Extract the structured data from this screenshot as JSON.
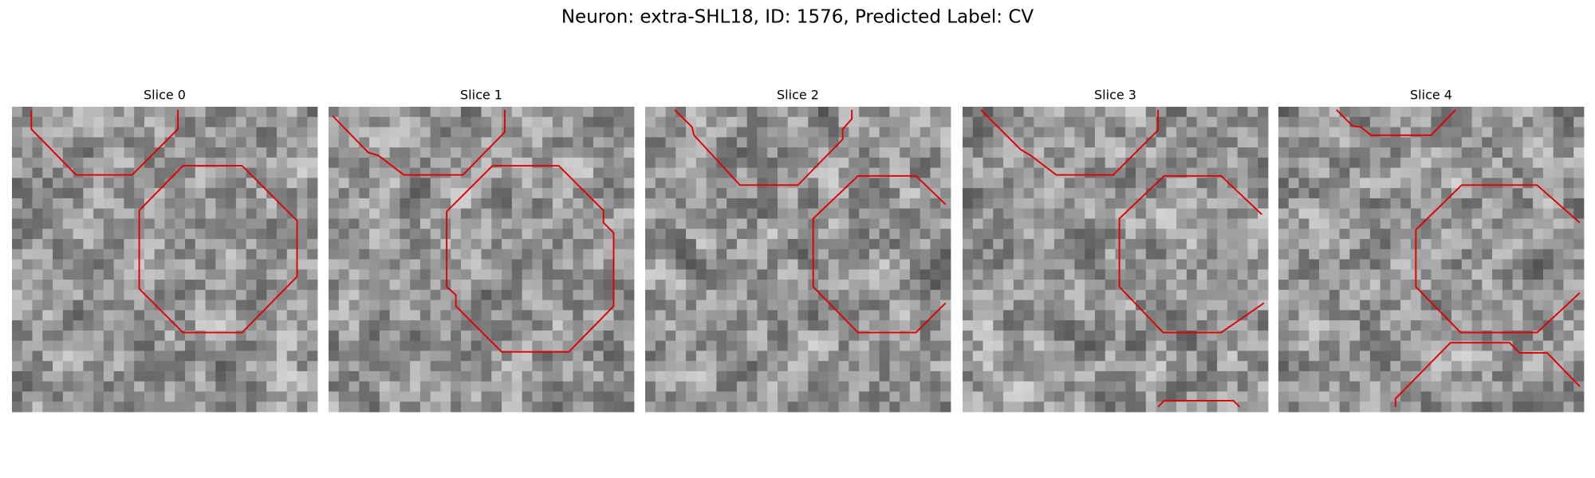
{
  "title": "Neuron: extra-SHL18, ID: 1576, Predicted Label: CV",
  "panels": [
    {
      "title": "Slice 0"
    },
    {
      "title": "Slice 1"
    },
    {
      "title": "Slice 2"
    },
    {
      "title": "Slice 3"
    },
    {
      "title": "Slice 4"
    }
  ]
}
